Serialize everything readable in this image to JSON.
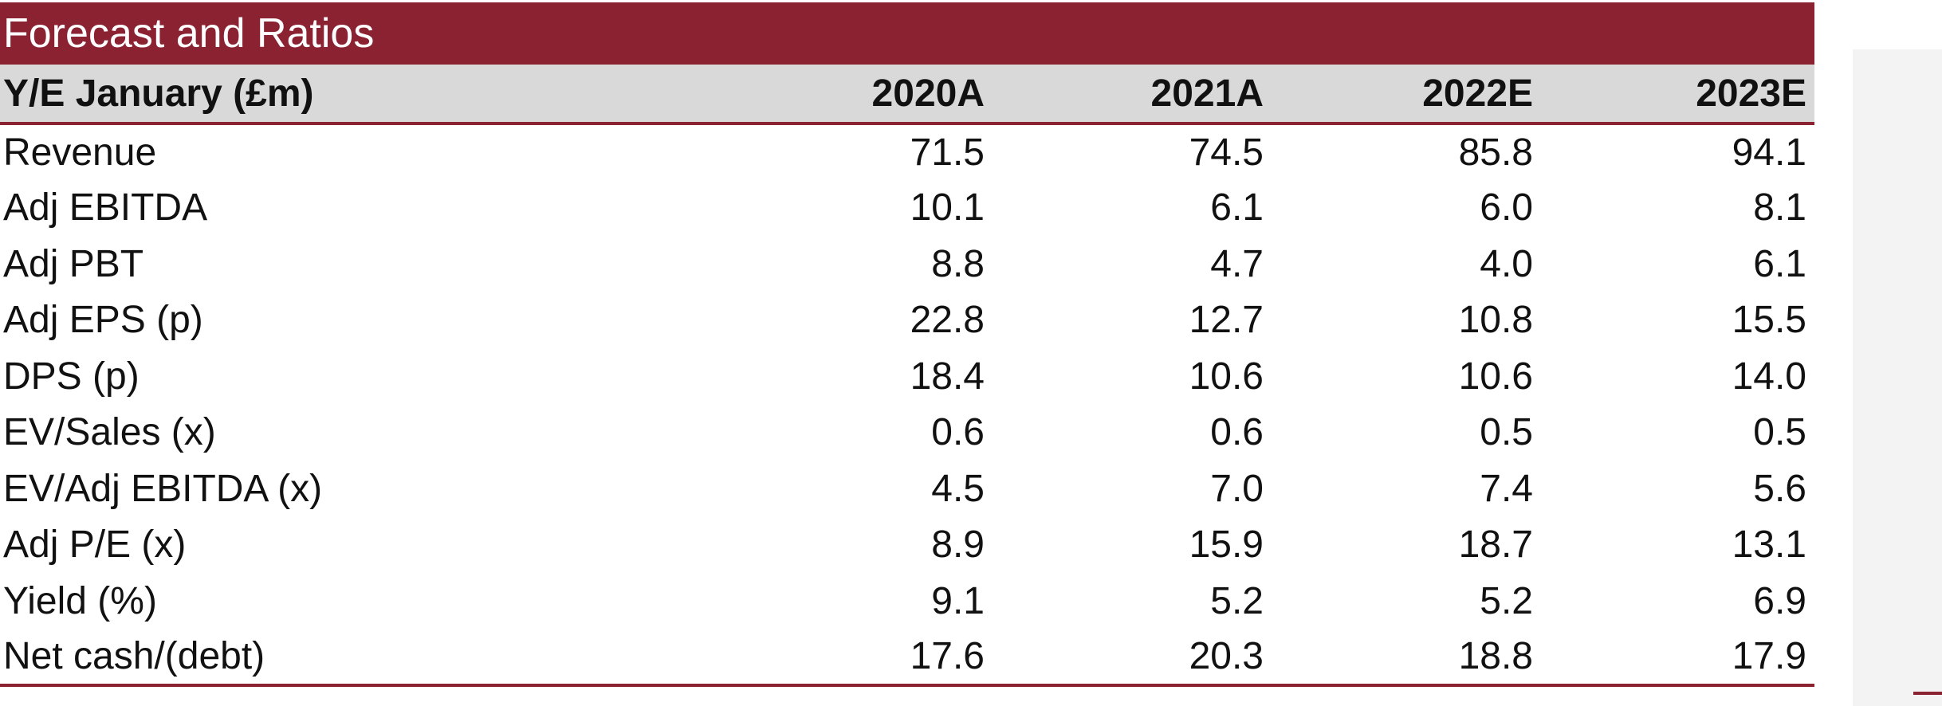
{
  "title": "Forecast and Ratios",
  "header": {
    "label": "Y/E January (£m)",
    "years": [
      "2020A",
      "2021A",
      "2022E",
      "2023E"
    ]
  },
  "rows": [
    {
      "label": "Revenue",
      "values": [
        "71.5",
        "74.5",
        "85.8",
        "94.1"
      ]
    },
    {
      "label": "Adj EBITDA",
      "values": [
        "10.1",
        "6.1",
        "6.0",
        "8.1"
      ]
    },
    {
      "label": "Adj PBT",
      "values": [
        "8.8",
        "4.7",
        "4.0",
        "6.1"
      ]
    },
    {
      "label": "Adj EPS (p)",
      "values": [
        "22.8",
        "12.7",
        "10.8",
        "15.5"
      ]
    },
    {
      "label": "DPS (p)",
      "values": [
        "18.4",
        "10.6",
        "10.6",
        "14.0"
      ]
    },
    {
      "label": "EV/Sales (x)",
      "values": [
        "0.6",
        "0.6",
        "0.5",
        "0.5"
      ]
    },
    {
      "label": "EV/Adj EBITDA (x)",
      "values": [
        "4.5",
        "7.0",
        "7.4",
        "5.6"
      ]
    },
    {
      "label": "Adj P/E (x)",
      "values": [
        "8.9",
        "15.9",
        "18.7",
        "13.1"
      ]
    },
    {
      "label": "Yield (%)",
      "values": [
        "9.1",
        "5.2",
        "5.2",
        "6.9"
      ]
    },
    {
      "label": "Net cash/(debt)",
      "values": [
        "17.6",
        "20.3",
        "18.8",
        "17.9"
      ]
    }
  ],
  "colors": {
    "accent": "#8B2232",
    "header_bg": "#D9D9D9"
  }
}
